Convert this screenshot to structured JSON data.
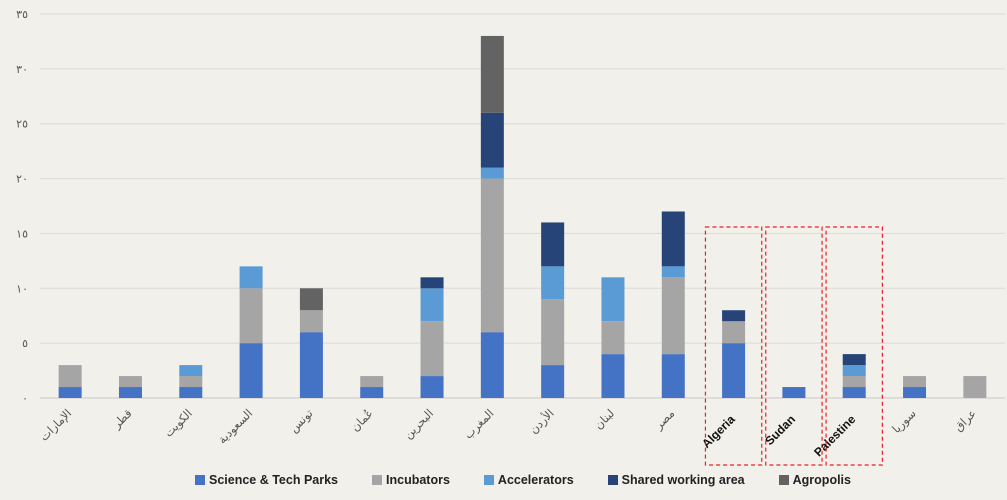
{
  "chart_data": {
    "type": "bar",
    "stacked": true,
    "categories": [
      "الإمارات",
      "قطر",
      "الكويت",
      "السعودية",
      "تونس",
      "عُمان",
      "البحرين",
      "المغرب",
      "الأردن",
      "لبنان",
      "مصر",
      "Algeria",
      "Sudan",
      "Palestine",
      "سوريا",
      "عراق"
    ],
    "series": [
      {
        "name": "Science & Tech Parks",
        "color": "#4472c4",
        "values": [
          1,
          1,
          1,
          5,
          6,
          1,
          2,
          6,
          3,
          4,
          4,
          5,
          1,
          1,
          1,
          0
        ]
      },
      {
        "name": "Incubators",
        "color": "#a5a5a5",
        "values": [
          2,
          1,
          1,
          5,
          2,
          1,
          5,
          14,
          6,
          3,
          7,
          2,
          0,
          1,
          1,
          2
        ]
      },
      {
        "name": "Accelerators",
        "color": "#5b9bd5",
        "values": [
          0,
          0,
          1,
          2,
          0,
          0,
          3,
          1,
          3,
          4,
          1,
          0,
          0,
          1,
          0,
          0
        ]
      },
      {
        "name": "Shared working area",
        "color": "#264478",
        "values": [
          0,
          0,
          0,
          0,
          0,
          0,
          1,
          5,
          4,
          0,
          5,
          1,
          0,
          1,
          0,
          0
        ]
      },
      {
        "name": "Agropolis",
        "color": "#636363",
        "values": [
          0,
          0,
          0,
          0,
          2,
          0,
          0,
          7,
          0,
          0,
          0,
          0,
          0,
          0,
          0,
          0
        ]
      }
    ],
    "ylim": [
      0,
      35
    ],
    "yticks": [
      0,
      5,
      10,
      15,
      20,
      25,
      30,
      35
    ],
    "ytick_labels": [
      "٠",
      "٥",
      "١٠",
      "١٥",
      "٢٠",
      "٢٥",
      "٣٠",
      "٣٥"
    ],
    "grid": true,
    "legend_position": "bottom",
    "highlighted_categories": [
      "Algeria",
      "Sudan",
      "Palestine"
    ],
    "highlight_color": "#e8202a"
  }
}
